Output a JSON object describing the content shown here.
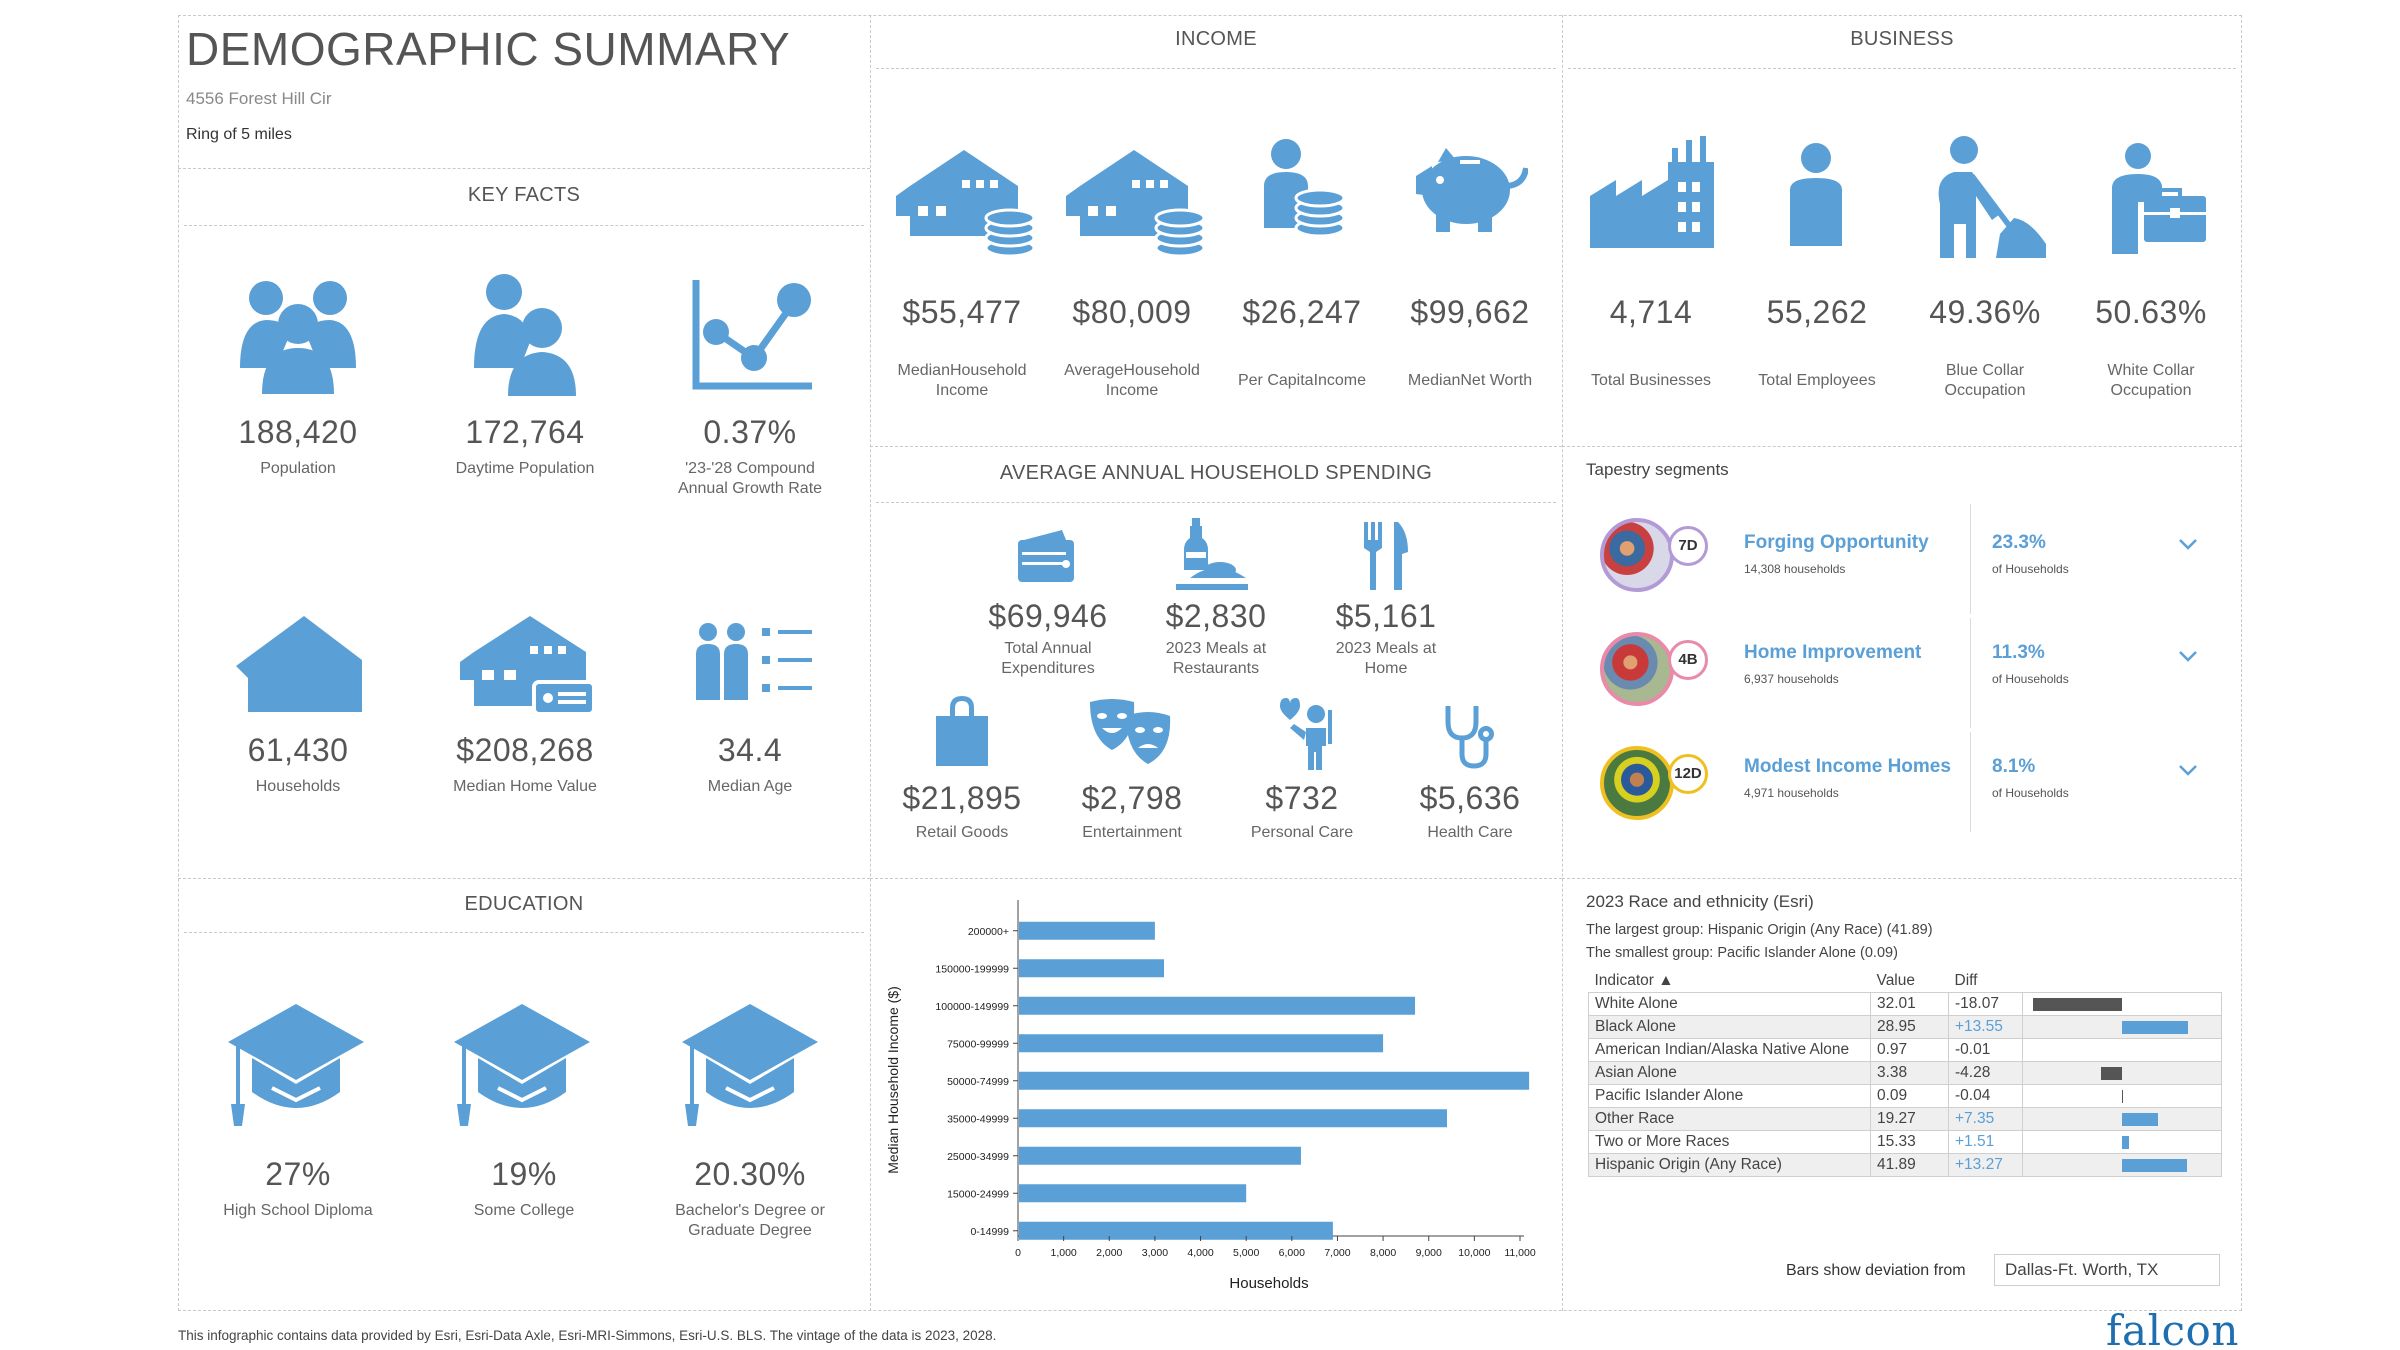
{
  "header": {
    "title": "DEMOGRAPHIC SUMMARY",
    "address": "4556 Forest Hill Cir",
    "ring": "Ring of 5 miles"
  },
  "key_facts": {
    "title": "KEY FACTS",
    "items": [
      {
        "value": "188,420",
        "label": "Population",
        "icon": "people-icon"
      },
      {
        "value": "172,764",
        "label": "Daytime Population",
        "icon": "daytime-people-icon"
      },
      {
        "value": "0.37%",
        "label": "'23-'28 Compound Annual Growth Rate",
        "icon": "growth-chart-icon"
      },
      {
        "value": "61,430",
        "label": "Households",
        "icon": "house-icon"
      },
      {
        "value": "$208,268",
        "label": "Median Home Value",
        "icon": "home-value-icon"
      },
      {
        "value": "34.4",
        "label": "Median Age",
        "icon": "age-icon"
      }
    ]
  },
  "education": {
    "title": "EDUCATION",
    "items": [
      {
        "value": "27%",
        "label": "High School Diploma",
        "icon": "graduation-cap-icon"
      },
      {
        "value": "19%",
        "label": "Some College",
        "icon": "graduation-cap-icon"
      },
      {
        "value": "20.30%",
        "label": "Bachelor's Degree or Graduate Degree",
        "icon": "graduation-cap-icon"
      }
    ]
  },
  "income": {
    "title": "INCOME",
    "items": [
      {
        "value": "$55,477",
        "label": "MedianHousehold Income",
        "icon": "house-coins-icon"
      },
      {
        "value": "$80,009",
        "label": "AverageHousehold Income",
        "icon": "house-coins-icon"
      },
      {
        "value": "$26,247",
        "label": "Per CapitaIncome",
        "icon": "person-coins-icon"
      },
      {
        "value": "$99,662",
        "label": "MedianNet Worth",
        "icon": "piggy-bank-icon"
      }
    ]
  },
  "spending": {
    "title": "AVERAGE ANNUAL HOUSEHOLD SPENDING",
    "items": [
      {
        "value": "$69,946",
        "label": "Total Annual Expenditures",
        "icon": "wallet-icon"
      },
      {
        "value": "$2,830",
        "label": "2023 Meals at Restaurants",
        "icon": "restaurant-icon"
      },
      {
        "value": "$5,161",
        "label": "2023 Meals at Home",
        "icon": "cutlery-icon"
      },
      {
        "value": "$21,895",
        "label": "Retail Goods",
        "icon": "shopping-bag-icon"
      },
      {
        "value": "$2,798",
        "label": "Entertainment",
        "icon": "theater-masks-icon"
      },
      {
        "value": "$732",
        "label": "Personal Care",
        "icon": "personal-care-icon"
      },
      {
        "value": "$5,636",
        "label": "Health Care",
        "icon": "stethoscope-icon"
      }
    ]
  },
  "business": {
    "title": "BUSINESS",
    "items": [
      {
        "value": "4,714",
        "label": "Total Businesses",
        "icon": "factory-icon"
      },
      {
        "value": "55,262",
        "label": "Total Employees",
        "icon": "employee-icon"
      },
      {
        "value": "49.36%",
        "label": "Blue Collar Occupation",
        "icon": "blue-collar-icon"
      },
      {
        "value": "50.63%",
        "label": "White Collar Occupation",
        "icon": "white-collar-icon"
      }
    ]
  },
  "tapestry": {
    "title": "Tapestry segments",
    "segments": [
      {
        "code": "7D",
        "name": "Forging Opportunity",
        "households": "14,308 households",
        "pct": "23.3%",
        "pct_label": "of Households",
        "ring_color": "#b29ad6"
      },
      {
        "code": "4B",
        "name": "Home Improvement",
        "households": "6,937 households",
        "pct": "11.3%",
        "pct_label": "of Households",
        "ring_color": "#e88aa8"
      },
      {
        "code": "12D",
        "name": "Modest Income Homes",
        "households": "4,971 households",
        "pct": "8.1%",
        "pct_label": "of Households",
        "ring_color": "#f0c020"
      }
    ]
  },
  "chart_data": {
    "type": "bar",
    "orientation": "horizontal",
    "categories": [
      "200000+",
      "150000-199999",
      "100000-149999",
      "75000-99999",
      "50000-74999",
      "35000-49999",
      "25000-34999",
      "15000-24999",
      "0-14999"
    ],
    "values": [
      3000,
      3200,
      8700,
      8000,
      11200,
      9400,
      6200,
      5000,
      6900
    ],
    "xlabel": "Households",
    "ylabel": "Median Household Income ($)",
    "xlim": [
      0,
      11000
    ],
    "xticks": [
      "0",
      "1,000",
      "2,000",
      "3,000",
      "4,000",
      "5,000",
      "6,000",
      "7,000",
      "8,000",
      "9,000",
      "10,000",
      "11,000"
    ],
    "bar_color": "#5a9fd6"
  },
  "race": {
    "title": "2023 Race and ethnicity (Esri)",
    "largest": "The largest group: Hispanic Origin (Any Race) (41.89)",
    "smallest": "The smallest group: Pacific Islander Alone (0.09)",
    "headers": {
      "indicator": "Indicator ▲",
      "value": "Value",
      "diff": "Diff"
    },
    "rows": [
      {
        "indicator": "White Alone",
        "value": "32.01",
        "diff": "-18.07",
        "d": -18.07
      },
      {
        "indicator": "Black Alone",
        "value": "28.95",
        "diff": "+13.55",
        "d": 13.55
      },
      {
        "indicator": "American Indian/Alaska Native Alone",
        "value": "0.97",
        "diff": "-0.01",
        "d": -0.01
      },
      {
        "indicator": "Asian Alone",
        "value": "3.38",
        "diff": "-4.28",
        "d": -4.28
      },
      {
        "indicator": "Pacific Islander Alone",
        "value": "0.09",
        "diff": "-0.04",
        "d": -0.04
      },
      {
        "indicator": "Other Race",
        "value": "19.27",
        "diff": "+7.35",
        "d": 7.35
      },
      {
        "indicator": "Two or More Races",
        "value": "15.33",
        "diff": "+1.51",
        "d": 1.51
      },
      {
        "indicator": "Hispanic Origin (Any Race)",
        "value": "41.89",
        "diff": "+13.27",
        "d": 13.27
      }
    ],
    "deviation_label": "Bars show deviation from",
    "deviation_value": "Dallas-Ft. Worth, TX",
    "pos_color": "#5a9fd6",
    "neg_color": "#555555"
  },
  "footer": {
    "note": "This infographic contains data provided by Esri, Esri-Data Axle, Esri-MRI-Simmons, Esri-U.S. BLS. The vintage of the data is 2023, 2028.",
    "brand": "falcon"
  }
}
